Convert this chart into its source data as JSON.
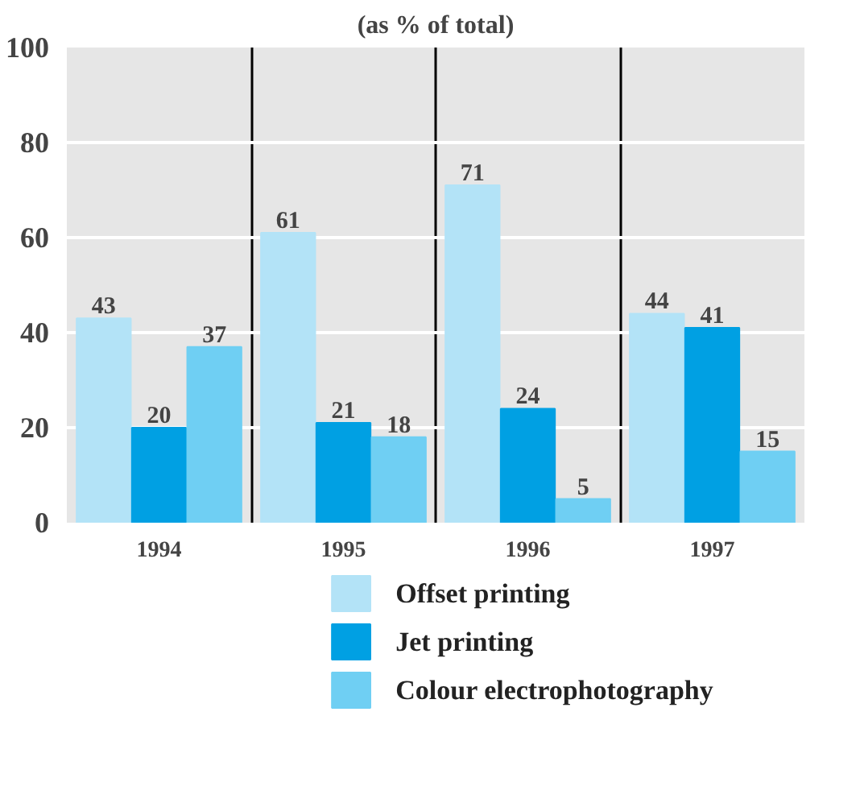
{
  "chart_data": {
    "type": "bar",
    "title": "(as % of total)",
    "categories": [
      "1994",
      "1995",
      "1996",
      "1997"
    ],
    "series": [
      {
        "name": "Offset printing",
        "color": "#b3e3f7",
        "values": [
          43,
          61,
          71,
          44
        ]
      },
      {
        "name": "Jet printing",
        "color": "#00a0e3",
        "values": [
          20,
          21,
          24,
          41
        ]
      },
      {
        "name": "Colour electrophotography",
        "color": "#6fcff3",
        "values": [
          37,
          18,
          5,
          15
        ]
      }
    ],
    "ylim": [
      0,
      100
    ],
    "yticks": [
      0,
      20,
      40,
      60,
      80,
      100
    ],
    "grid": "y",
    "legend": "bottom",
    "data_labels": true
  }
}
